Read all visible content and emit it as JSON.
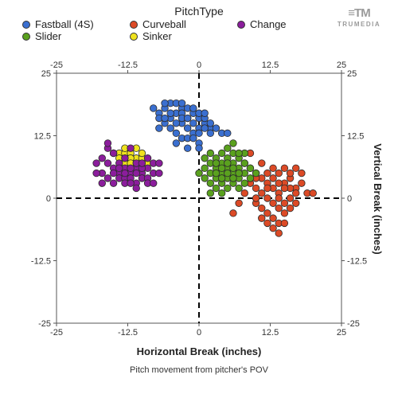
{
  "legend": {
    "title": "PitchType",
    "items": [
      {
        "label": "Fastball (4S)",
        "color": "#3a6fd0"
      },
      {
        "label": "Curveball",
        "color": "#dc4a26"
      },
      {
        "label": "Change",
        "color": "#8b1d9c"
      },
      {
        "label": "Slider",
        "color": "#5aa11e"
      },
      {
        "label": "Sinker",
        "color": "#efe21e"
      }
    ]
  },
  "brand": {
    "logo": "≡TM",
    "text": "TRUMEDIA"
  },
  "chart_data": {
    "type": "scatter",
    "title": "",
    "xlabel": "Horizontal Break (inches)",
    "ylabel": "Vertical Break (inches)",
    "caption": "Pitch movement from pitcher's POV",
    "xlim": [
      -25,
      25
    ],
    "ylim": [
      -25,
      25
    ],
    "xticks": [
      "-25",
      "-12.5",
      "0",
      "12.5",
      "25"
    ],
    "yticks": [
      "25",
      "12.5",
      "0",
      "-12.5",
      "-25"
    ],
    "grid": false,
    "zero_lines": "dashed",
    "legend_position": "top",
    "series": [
      {
        "name": "Fastball (4S)",
        "color": "#3a6fd0",
        "points": [
          [
            -7,
            17
          ],
          [
            -6,
            18
          ],
          [
            -5,
            16
          ],
          [
            -4,
            17
          ],
          [
            -3,
            15
          ],
          [
            -2,
            16
          ],
          [
            -1,
            17
          ],
          [
            0,
            16
          ],
          [
            1,
            15
          ],
          [
            2,
            14
          ],
          [
            -6,
            15
          ],
          [
            -5,
            14
          ],
          [
            -4,
            15
          ],
          [
            -3,
            18
          ],
          [
            -2,
            18
          ],
          [
            -1,
            15
          ],
          [
            0,
            14
          ],
          [
            -5,
            19
          ],
          [
            -4,
            19
          ],
          [
            -3,
            17
          ],
          [
            -2,
            14
          ],
          [
            -1,
            13
          ],
          [
            0,
            13
          ],
          [
            1,
            16
          ],
          [
            2,
            15
          ],
          [
            3,
            14
          ],
          [
            -7,
            16
          ],
          [
            -6,
            16
          ],
          [
            -4,
            13
          ],
          [
            -3,
            12
          ],
          [
            -2,
            12
          ],
          [
            -1,
            12
          ],
          [
            0,
            11
          ],
          [
            -8,
            18
          ],
          [
            -5,
            17
          ],
          [
            -3,
            16
          ],
          [
            -1,
            18
          ],
          [
            1,
            14
          ],
          [
            2,
            13
          ],
          [
            4,
            13
          ],
          [
            5,
            13
          ],
          [
            -4,
            11
          ],
          [
            -2,
            10
          ],
          [
            0,
            10
          ],
          [
            -6,
            19
          ],
          [
            -7,
            14
          ],
          [
            -3,
            19
          ],
          [
            -2,
            16
          ],
          [
            0,
            17
          ],
          [
            1,
            17
          ]
        ]
      },
      {
        "name": "Curveball",
        "color": "#dc4a26",
        "points": [
          [
            8,
            7
          ],
          [
            9,
            6
          ],
          [
            10,
            5
          ],
          [
            11,
            4
          ],
          [
            12,
            3
          ],
          [
            13,
            2
          ],
          [
            14,
            1
          ],
          [
            15,
            3
          ],
          [
            16,
            4
          ],
          [
            17,
            2
          ],
          [
            9,
            3
          ],
          [
            10,
            2
          ],
          [
            11,
            1
          ],
          [
            12,
            0
          ],
          [
            13,
            -1
          ],
          [
            14,
            -2
          ],
          [
            15,
            -1
          ],
          [
            16,
            0
          ],
          [
            17,
            1
          ],
          [
            10,
            -1
          ],
          [
            11,
            -2
          ],
          [
            12,
            -3
          ],
          [
            13,
            -4
          ],
          [
            14,
            -5
          ],
          [
            15,
            -3
          ],
          [
            16,
            -2
          ],
          [
            12,
            5
          ],
          [
            13,
            6
          ],
          [
            14,
            5
          ],
          [
            15,
            6
          ],
          [
            16,
            5
          ],
          [
            17,
            6
          ],
          [
            18,
            5
          ],
          [
            19,
            1
          ],
          [
            20,
            1
          ],
          [
            11,
            -4
          ],
          [
            13,
            -6
          ],
          [
            15,
            -5
          ],
          [
            10,
            0
          ],
          [
            12,
            2
          ],
          [
            14,
            3
          ],
          [
            16,
            2
          ],
          [
            18,
            3
          ],
          [
            9,
            9
          ],
          [
            11,
            7
          ],
          [
            13,
            4
          ],
          [
            15,
            2
          ],
          [
            17,
            -1
          ],
          [
            12,
            -5
          ],
          [
            14,
            -7
          ],
          [
            6,
            -3
          ],
          [
            7,
            -1
          ],
          [
            8,
            1
          ],
          [
            10,
            4
          ],
          [
            14,
            0
          ]
        ]
      },
      {
        "name": "Slider",
        "color": "#5aa11e",
        "points": [
          [
            1,
            6
          ],
          [
            2,
            5
          ],
          [
            3,
            6
          ],
          [
            4,
            5
          ],
          [
            5,
            6
          ],
          [
            6,
            5
          ],
          [
            7,
            6
          ],
          [
            8,
            5
          ],
          [
            2,
            7
          ],
          [
            3,
            8
          ],
          [
            4,
            7
          ],
          [
            5,
            8
          ],
          [
            6,
            7
          ],
          [
            7,
            8
          ],
          [
            8,
            7
          ],
          [
            1,
            4
          ],
          [
            2,
            3
          ],
          [
            3,
            4
          ],
          [
            4,
            3
          ],
          [
            5,
            4
          ],
          [
            6,
            3
          ],
          [
            7,
            4
          ],
          [
            8,
            3
          ],
          [
            9,
            4
          ],
          [
            3,
            5
          ],
          [
            4,
            6
          ],
          [
            5,
            5
          ],
          [
            6,
            6
          ],
          [
            7,
            5
          ],
          [
            4,
            9
          ],
          [
            5,
            10
          ],
          [
            6,
            9
          ],
          [
            2,
            9
          ],
          [
            3,
            2
          ],
          [
            5,
            2
          ],
          [
            7,
            2
          ],
          [
            9,
            6
          ],
          [
            10,
            5
          ],
          [
            1,
            8
          ],
          [
            0,
            5
          ],
          [
            4,
            4
          ],
          [
            6,
            4
          ],
          [
            3,
            7
          ],
          [
            5,
            7
          ],
          [
            8,
            9
          ],
          [
            6,
            11
          ],
          [
            4,
            1
          ],
          [
            2,
            1
          ],
          [
            7,
            9
          ]
        ]
      },
      {
        "name": "Sinker",
        "color": "#efe21e",
        "points": [
          [
            -14,
            9
          ],
          [
            -13,
            9
          ],
          [
            -12,
            9
          ],
          [
            -11,
            8
          ],
          [
            -10,
            8
          ],
          [
            -14,
            8
          ],
          [
            -13,
            7
          ],
          [
            -12,
            8
          ],
          [
            -9,
            7
          ],
          [
            -11,
            10
          ],
          [
            -15,
            9
          ],
          [
            -10,
            9
          ],
          [
            -12,
            7
          ],
          [
            -13,
            10
          ]
        ]
      },
      {
        "name": "Change",
        "color": "#8b1d9c",
        "points": [
          [
            -17,
            8
          ],
          [
            -16,
            7
          ],
          [
            -15,
            6
          ],
          [
            -14,
            5
          ],
          [
            -13,
            6
          ],
          [
            -12,
            5
          ],
          [
            -11,
            6
          ],
          [
            -10,
            5
          ],
          [
            -9,
            6
          ],
          [
            -8,
            7
          ],
          [
            -17,
            5
          ],
          [
            -16,
            4
          ],
          [
            -15,
            3
          ],
          [
            -14,
            4
          ],
          [
            -13,
            4
          ],
          [
            -12,
            4
          ],
          [
            -11,
            3
          ],
          [
            -10,
            4
          ],
          [
            -9,
            4
          ],
          [
            -16,
            10
          ],
          [
            -15,
            9
          ],
          [
            -14,
            7
          ],
          [
            -12,
            6
          ],
          [
            -11,
            7
          ],
          [
            -10,
            6
          ],
          [
            -9,
            8
          ],
          [
            -8,
            5
          ],
          [
            -7,
            5
          ],
          [
            -18,
            7
          ],
          [
            -17,
            3
          ],
          [
            -18,
            5
          ],
          [
            -13,
            3
          ],
          [
            -12,
            3
          ],
          [
            -11,
            5
          ],
          [
            -14,
            6
          ],
          [
            -13,
            5
          ],
          [
            -15,
            5
          ],
          [
            -10,
            7
          ],
          [
            -9,
            3
          ],
          [
            -13,
            8
          ],
          [
            -12,
            10
          ],
          [
            -16,
            11
          ],
          [
            -7,
            7
          ],
          [
            -8,
            3
          ],
          [
            -11,
            2
          ]
        ]
      }
    ]
  }
}
